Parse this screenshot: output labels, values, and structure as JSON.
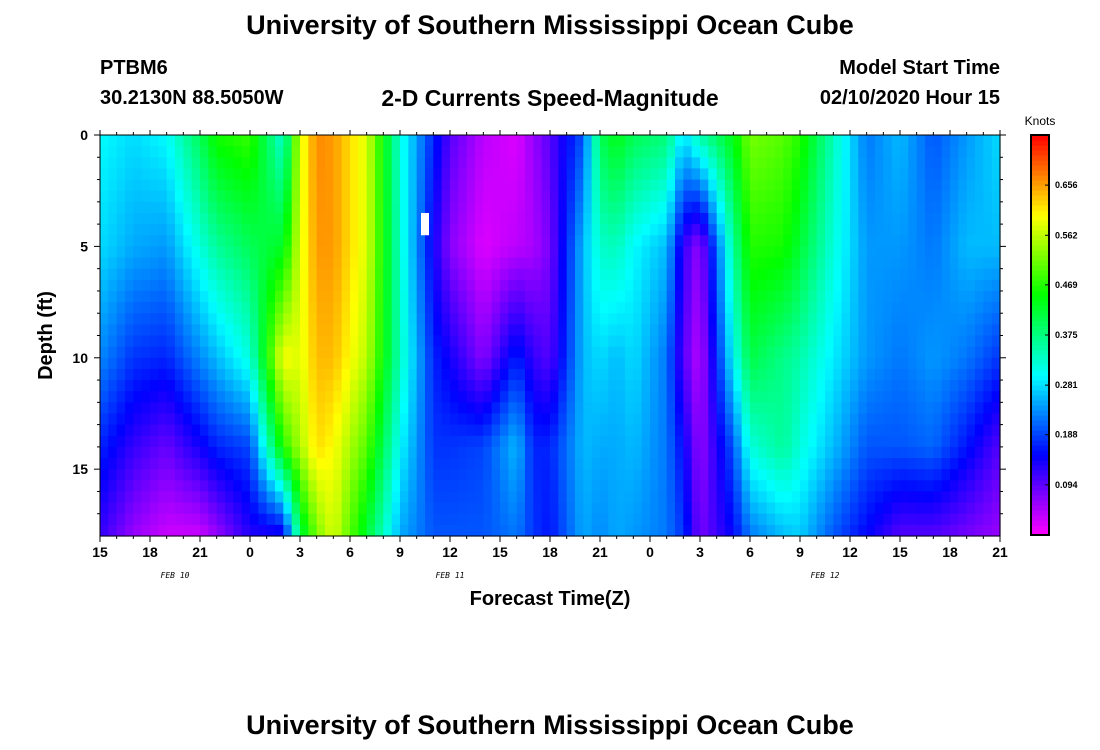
{
  "header": {
    "title": "University of Southern Mississippi Ocean Cube",
    "station": "PTBM6",
    "coords": "30.2130N 88.5050W",
    "chart_title": "2-D Currents Speed-Magnitude",
    "model_start_label": "Model Start Time",
    "model_start_value": "02/10/2020 Hour 15"
  },
  "footer": {
    "title": "University of Southern Mississippi Ocean Cube"
  },
  "colors": {
    "background": "#ffffff",
    "text": "#000000",
    "marker": "#ffffff"
  },
  "chart_data": {
    "type": "heatmap",
    "title": "2-D Currents Speed-Magnitude",
    "xlabel": "Forecast Time(Z)",
    "ylabel": "Depth (ft)",
    "x_range_hours": [
      0,
      54
    ],
    "x_tick_labels": [
      "15",
      "18",
      "21",
      "0",
      "3",
      "6",
      "9",
      "12",
      "15",
      "18",
      "21",
      "0",
      "3",
      "6",
      "9",
      "12",
      "15",
      "18",
      "21"
    ],
    "date_labels": [
      {
        "label": "FEB 10",
        "hour": 4.5
      },
      {
        "label": "FEB 11",
        "hour": 21
      },
      {
        "label": "FEB 12",
        "hour": 43.5
      }
    ],
    "y_range_ft": [
      0,
      18
    ],
    "y_ticks": [
      0,
      5,
      10,
      15
    ],
    "colorbar": {
      "title": "Knots",
      "min": 0,
      "max": 0.75,
      "labels": [
        "0.656",
        "0.562",
        "0.469",
        "0.375",
        "0.281",
        "0.188",
        "0.094"
      ],
      "label_values": [
        0.656,
        0.562,
        0.469,
        0.375,
        0.281,
        0.188,
        0.094
      ]
    },
    "speed_field": {
      "x_hours": [
        0,
        2,
        4,
        6,
        7,
        9,
        11,
        12,
        13,
        14,
        16,
        18,
        20,
        21,
        23,
        25,
        26,
        27,
        29,
        30,
        31,
        32,
        34,
        35,
        36,
        38,
        39,
        41,
        42,
        44,
        46,
        48,
        50,
        52,
        54
      ],
      "depth_ft": [
        0,
        5,
        10,
        14,
        18
      ],
      "knots": [
        [
          0.3,
          0.28,
          0.23,
          0.17,
          0.12
        ],
        [
          0.28,
          0.25,
          0.18,
          0.12,
          0.06
        ],
        [
          0.3,
          0.24,
          0.17,
          0.09,
          0.03
        ],
        [
          0.4,
          0.32,
          0.23,
          0.14,
          0.03
        ],
        [
          0.46,
          0.36,
          0.26,
          0.17,
          0.06
        ],
        [
          0.48,
          0.4,
          0.32,
          0.19,
          0.13
        ],
        [
          0.32,
          0.43,
          0.6,
          0.47,
          0.13
        ],
        [
          0.58,
          0.58,
          0.58,
          0.55,
          0.4
        ],
        [
          0.67,
          0.66,
          0.64,
          0.62,
          0.52
        ],
        [
          0.66,
          0.66,
          0.64,
          0.6,
          0.58
        ],
        [
          0.58,
          0.58,
          0.56,
          0.5,
          0.42
        ],
        [
          0.32,
          0.33,
          0.34,
          0.3,
          0.25
        ],
        [
          0.17,
          0.14,
          0.17,
          0.18,
          0.2
        ],
        [
          0.1,
          0.07,
          0.14,
          0.18,
          0.2
        ],
        [
          0.04,
          0.02,
          0.07,
          0.19,
          0.2
        ],
        [
          0.02,
          0.04,
          0.17,
          0.26,
          0.22
        ],
        [
          0.06,
          0.05,
          0.12,
          0.17,
          0.18
        ],
        [
          0.1,
          0.08,
          0.1,
          0.17,
          0.16
        ],
        [
          0.2,
          0.26,
          0.26,
          0.26,
          0.25
        ],
        [
          0.4,
          0.33,
          0.28,
          0.25,
          0.23
        ],
        [
          0.44,
          0.34,
          0.26,
          0.25,
          0.25
        ],
        [
          0.4,
          0.3,
          0.28,
          0.26,
          0.24
        ],
        [
          0.38,
          0.26,
          0.22,
          0.22,
          0.22
        ],
        [
          0.28,
          0.12,
          0.1,
          0.15,
          0.18
        ],
        [
          0.35,
          0.06,
          0.04,
          0.06,
          0.08
        ],
        [
          0.44,
          0.36,
          0.3,
          0.2,
          0.15
        ],
        [
          0.52,
          0.47,
          0.41,
          0.32,
          0.22
        ],
        [
          0.5,
          0.46,
          0.37,
          0.36,
          0.26
        ],
        [
          0.47,
          0.42,
          0.35,
          0.32,
          0.27
        ],
        [
          0.34,
          0.32,
          0.29,
          0.26,
          0.2
        ],
        [
          0.22,
          0.24,
          0.24,
          0.2,
          0.15
        ],
        [
          0.26,
          0.24,
          0.22,
          0.2,
          0.1
        ],
        [
          0.2,
          0.22,
          0.24,
          0.21,
          0.1
        ],
        [
          0.24,
          0.26,
          0.22,
          0.16,
          0.08
        ],
        [
          0.28,
          0.26,
          0.18,
          0.1,
          0.06
        ]
      ]
    },
    "grid": false,
    "legend_position": "right"
  }
}
